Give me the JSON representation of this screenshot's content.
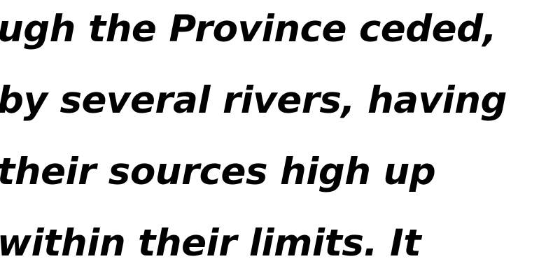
{
  "document": {
    "lines": [
      "ugh the Province ceded,",
      "by several rivers, having",
      "their sources high up",
      "within their limits. It"
    ]
  }
}
